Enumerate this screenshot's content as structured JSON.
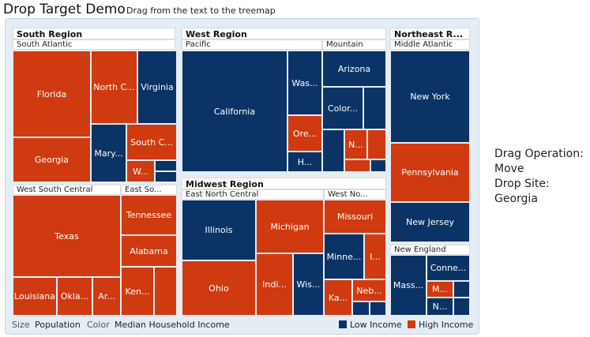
{
  "header": {
    "title": "Drop Target Demo",
    "hint": "Drag from the text to the treemap"
  },
  "regions": {
    "south": "South Region",
    "west": "West Region",
    "northeast": "Northeast R...",
    "midwest": "Midwest Region"
  },
  "groups": {
    "south_atlantic": "South Atlantic",
    "west_south_central": "West South Central",
    "east_south": "East So...",
    "pacific": "Pacific",
    "mountain": "Mountain",
    "middle_atlantic": "Middle Atlantic",
    "new_england": "New England",
    "east_north_central": "East North Central",
    "west_north": "West No..."
  },
  "states": {
    "florida": "Florida",
    "north_carolina": "North C...",
    "virginia": "Virginia",
    "georgia": "Georgia",
    "maryland": "Mary...",
    "south_carolina": "South C...",
    "west_virginia": "W...",
    "texas": "Texas",
    "louisiana": "Louisiana",
    "oklahoma": "Okla...",
    "arkansas": "Ar...",
    "tennessee": "Tennessee",
    "alabama": "Alabama",
    "kentucky": "Ken...",
    "california": "California",
    "washington": "Was...",
    "oregon": "Ore...",
    "hawaii": "H...",
    "arizona": "Arizona",
    "colorado": "Color...",
    "nevada": "N...",
    "new_york": "New York",
    "pennsylvania": "Pennsylvania",
    "new_jersey": "New Jersey",
    "massachusetts": "Mass...",
    "connecticut": "Conne...",
    "maine": "M...",
    "new_hampshire": "N...",
    "illinois": "Illinois",
    "michigan": "Michigan",
    "ohio": "Ohio",
    "indiana": "Indi...",
    "wisconsin": "Wis...",
    "missouri": "Missouri",
    "minnesota": "Minne...",
    "iowa": "I...",
    "kansas": "Ka...",
    "nebraska": "Neb..."
  },
  "footer": {
    "size_label": "Size",
    "size_value": "Population",
    "color_label": "Color",
    "color_value": "Median Household Income",
    "legend_low": "Low Income",
    "legend_high": "High Income"
  },
  "colors": {
    "low": "#0b3366",
    "high": "#cf3a10"
  },
  "status": {
    "operation_label": "Drag Operation:",
    "operation_value": "Move",
    "site_label": "Drop Site:",
    "site_value": "Georgia"
  }
}
